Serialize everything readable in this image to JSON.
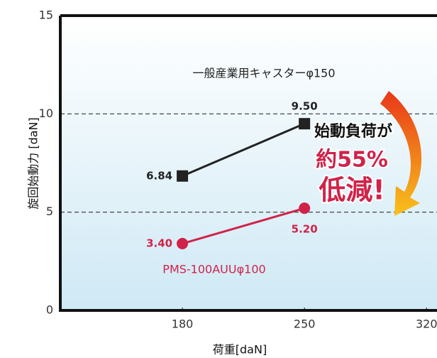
{
  "chart_data": {
    "type": "line",
    "x_label": "荷重[daN]",
    "y_label": "旋回始動力 [daN]",
    "xlim": [
      110,
      326
    ],
    "xticks": [
      180,
      250,
      320
    ],
    "ylim": [
      0,
      15
    ],
    "yticks": [
      0,
      5,
      10,
      15
    ],
    "grid": true,
    "series": [
      {
        "name": "一般産業用キャスターφ150",
        "color": "#222222",
        "marker": "square",
        "x": [
          180,
          250
        ],
        "values": [
          6.84,
          9.5
        ],
        "value_labels": [
          "6.84",
          "9.50"
        ]
      },
      {
        "name": "PMS-100AUUφ100",
        "color": "#d0234a",
        "marker": "circle",
        "x": [
          180,
          250
        ],
        "values": [
          3.4,
          5.2
        ],
        "value_labels": [
          "3.40",
          "5.20"
        ]
      }
    ],
    "annotation_lines": [
      "始動負荷が",
      "約55%",
      "低減!"
    ]
  }
}
